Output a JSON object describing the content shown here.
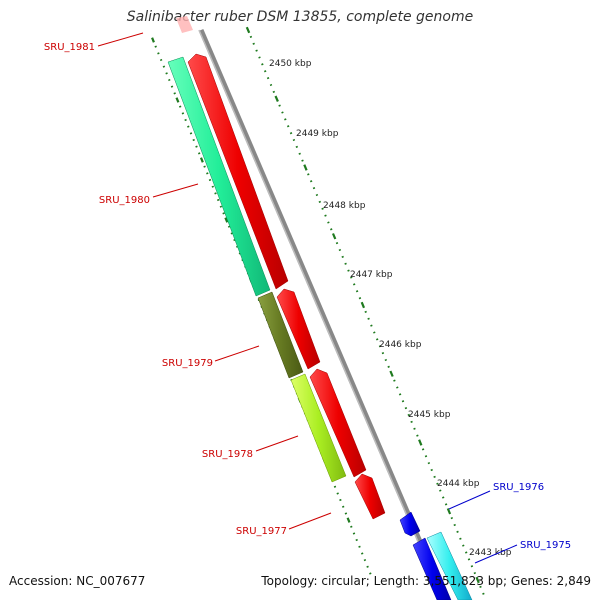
{
  "title": "Salinibacter ruber DSM 13855, complete genome",
  "accession_text": "Accession: NC_007677",
  "summary_text": "Topology: circular; Length: 3,551,823 bp; Genes: 2,849",
  "colors": {
    "backbone": "#8a8a8a",
    "tick": "#1f7a1f",
    "gene_forward_label": "#cc0000",
    "gene_reverse_label": "#0000cc"
  },
  "scale_ticks": [
    {
      "label": "2450 kbp"
    },
    {
      "label": "2449 kbp"
    },
    {
      "label": "2448 kbp"
    },
    {
      "label": "2447 kbp"
    },
    {
      "label": "2446 kbp"
    },
    {
      "label": "2445 kbp"
    },
    {
      "label": "2444 kbp"
    },
    {
      "label": "2443 kbp"
    }
  ],
  "genes": [
    {
      "name": "SRU_1981",
      "label_color": "#cc0000"
    },
    {
      "name": "SRU_1980",
      "label_color": "#cc0000"
    },
    {
      "name": "SRU_1979",
      "label_color": "#cc0000"
    },
    {
      "name": "SRU_1978",
      "label_color": "#cc0000"
    },
    {
      "name": "SRU_1977",
      "label_color": "#cc0000"
    },
    {
      "name": "SRU_1976",
      "label_color": "#0000cc"
    },
    {
      "name": "SRU_1975",
      "label_color": "#0000cc"
    }
  ]
}
